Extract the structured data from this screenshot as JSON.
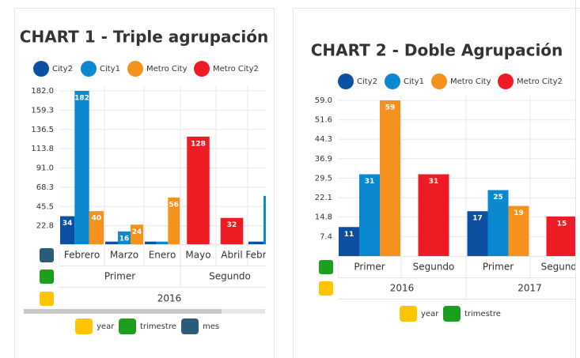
{
  "chart_data": [
    {
      "type": "bar",
      "title": "CHART 1 - Triple agrupación",
      "category_level": {
        "name": "mes",
        "color": "#2b5c7a"
      },
      "categories": [
        "Febrero",
        "Marzo",
        "Enero",
        "Mayo",
        "Abril",
        "Febrero"
      ],
      "groups": [
        {
          "name": "trimestre",
          "color": "#1ca01c",
          "labels": [
            "Primer",
            "Primer",
            "Primer",
            "Segundo",
            "Segundo",
            "Segundo"
          ]
        },
        {
          "name": "year",
          "color": "#ffc600",
          "labels": [
            "2016",
            "2016",
            "2016",
            "2016",
            "2016",
            "2016"
          ]
        }
      ],
      "series": [
        {
          "name": "City2",
          "color": "#0d4fa0",
          "values": [
            34,
            4,
            4,
            null,
            null,
            4
          ]
        },
        {
          "name": "City1",
          "color": "#0a88d0",
          "values": [
            182,
            16,
            4,
            null,
            null,
            58
          ]
        },
        {
          "name": "Metro City",
          "color": "#f5921e",
          "values": [
            40,
            24,
            56,
            null,
            null,
            null
          ]
        },
        {
          "name": "Metro City2",
          "color": "#ed1c24",
          "values": [
            null,
            null,
            null,
            128,
            32,
            null
          ]
        }
      ],
      "ylim": [
        0,
        182
      ],
      "yticks": [
        22.8,
        45.5,
        68.3,
        {
          "value": 91,
          "label": "91.0"
        },
        113.8,
        136.5,
        159.3,
        {
          "value": 182,
          "label": "182.0"
        }
      ],
      "grid": true
    },
    {
      "type": "bar",
      "title": "CHART 2 - Doble Agrupación",
      "category_level": {
        "name": "trimestre",
        "color": "#1ca01c"
      },
      "categories": [
        "Primer",
        "Segundo",
        "Primer",
        "Segundo"
      ],
      "groups": [
        {
          "name": "year",
          "color": "#ffc600",
          "labels": [
            "2016",
            "2016",
            "2017",
            "2017"
          ]
        }
      ],
      "series": [
        {
          "name": "City2",
          "color": "#0d4fa0",
          "values": [
            11,
            null,
            17,
            null
          ]
        },
        {
          "name": "City1",
          "color": "#0a88d0",
          "values": [
            31,
            null,
            25,
            null
          ]
        },
        {
          "name": "Metro City",
          "color": "#f5921e",
          "values": [
            59,
            null,
            19,
            null
          ]
        },
        {
          "name": "Metro City2",
          "color": "#ed1c24",
          "values": [
            null,
            31,
            null,
            15
          ]
        }
      ],
      "ylim": [
        0,
        59
      ],
      "yticks": [
        7.4,
        14.8,
        22.1,
        29.5,
        36.9,
        44.3,
        51.6,
        {
          "value": 59,
          "label": "59.0"
        }
      ],
      "grid": true
    }
  ]
}
